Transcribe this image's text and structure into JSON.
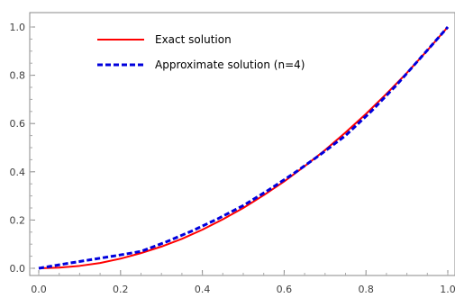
{
  "chart_data": {
    "type": "line",
    "title": "",
    "xlabel": "",
    "ylabel": "",
    "xlim": [
      0,
      1
    ],
    "ylim": [
      0,
      1
    ],
    "x_ticks": [
      "0.0",
      "0.2",
      "0.4",
      "0.6",
      "0.8",
      "1.0"
    ],
    "y_ticks": [
      "0.0",
      "0.2",
      "0.4",
      "0.6",
      "0.8",
      "1.0"
    ],
    "grid": false,
    "legend_position": "top-left",
    "series": [
      {
        "name": "Exact solution",
        "color": "#ff0000",
        "style": "solid",
        "x": [
          0,
          0.05,
          0.1,
          0.15,
          0.2,
          0.25,
          0.3,
          0.35,
          0.4,
          0.45,
          0.5,
          0.55,
          0.6,
          0.65,
          0.7,
          0.75,
          0.8,
          0.85,
          0.9,
          0.95,
          1.0
        ],
        "y": [
          0,
          0.003,
          0.01,
          0.022,
          0.04,
          0.063,
          0.09,
          0.122,
          0.16,
          0.203,
          0.25,
          0.303,
          0.36,
          0.423,
          0.49,
          0.563,
          0.64,
          0.723,
          0.81,
          0.903,
          1.0
        ]
      },
      {
        "name": "Approximate solution (n=4)",
        "color": "#0000dd",
        "style": "dashed",
        "x": [
          0,
          0.0625,
          0.125,
          0.1875,
          0.25,
          0.3125,
          0.375,
          0.4375,
          0.5,
          0.5625,
          0.625,
          0.6875,
          0.75,
          0.8125,
          0.875,
          0.9375,
          1.0
        ],
        "y": [
          0,
          0.018,
          0.035,
          0.052,
          0.07,
          0.11,
          0.155,
          0.205,
          0.26,
          0.325,
          0.395,
          0.47,
          0.55,
          0.65,
          0.76,
          0.88,
          1.0
        ]
      }
    ]
  }
}
